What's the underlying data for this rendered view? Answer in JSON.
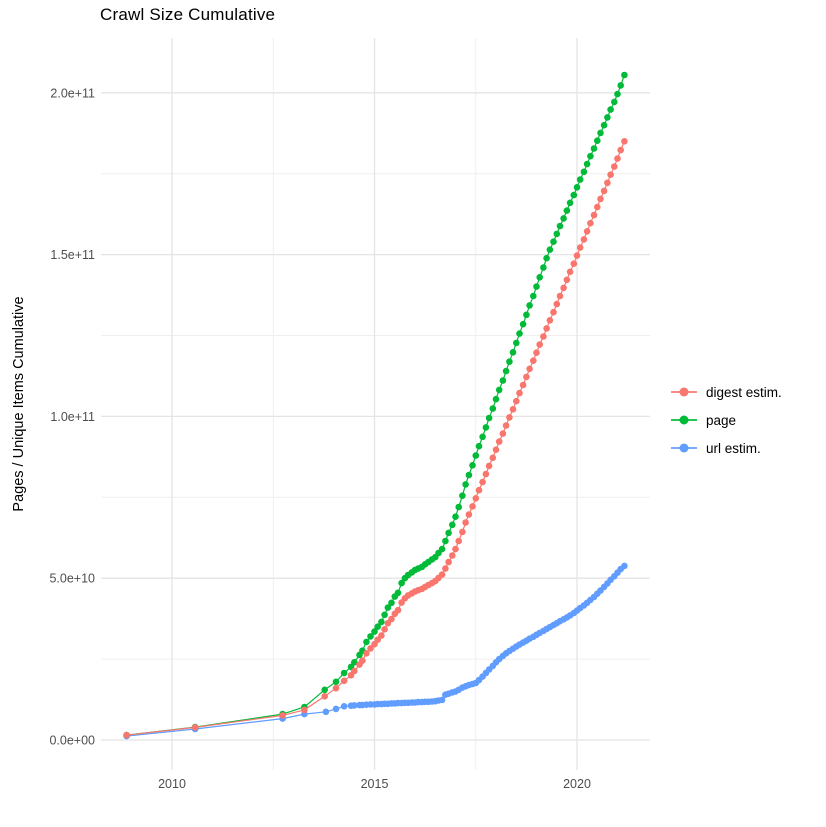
{
  "title": "Crawl Size Cumulative",
  "chart_data": {
    "type": "scatter",
    "subtype": "points-with-lines",
    "title": "Crawl Size Cumulative",
    "xlabel": "",
    "ylabel": "Pages / Unique Items Cumulative",
    "y_unit": "values listed in billions (multiply by 1e9)",
    "xlim": [
      2008.1,
      2021.8
    ],
    "ylim_e9": [
      -10,
      216
    ],
    "grid": "major+minor, light gray on white, no axis lines",
    "legend_position": "right-middle",
    "x_ticks": {
      "major": [
        2010,
        2015,
        2020
      ],
      "labels": [
        "2010",
        "2015",
        "2020"
      ],
      "minor": [
        2012.5,
        2017.5
      ]
    },
    "y_ticks": {
      "major_e9": [
        0,
        50,
        100,
        150,
        200
      ],
      "labels": [
        "0.0e+00",
        "5.0e+10",
        "1.0e+11",
        "1.5e+11",
        "2.0e+11"
      ],
      "minor_e9": [
        25,
        75,
        125,
        175
      ]
    },
    "colors": {
      "digest": "#F8766D",
      "page": "#00BA38",
      "url": "#619CFF"
    },
    "legend": {
      "items": [
        {
          "label": "digest estim.",
          "color": "#F8766D"
        },
        {
          "label": "page",
          "color": "#00BA38"
        },
        {
          "label": "url estim.",
          "color": "#619CFF"
        }
      ]
    },
    "series": [
      {
        "name": "digest estim.",
        "color": "#F8766D",
        "points_e9": [
          [
            2008.88,
            1.5
          ],
          [
            2010.57,
            3.9
          ],
          [
            2012.73,
            7.6
          ],
          [
            2013.27,
            9.3
          ],
          [
            2013.77,
            13.5
          ],
          [
            2014.05,
            16.0
          ],
          [
            2014.25,
            18.3
          ],
          [
            2014.42,
            20.0
          ],
          [
            2014.5,
            21.3
          ],
          [
            2014.63,
            23.3
          ],
          [
            2014.7,
            24.5
          ],
          [
            2014.8,
            26.8
          ],
          [
            2014.9,
            28.3
          ],
          [
            2015.0,
            29.6
          ],
          [
            2015.08,
            31.0
          ],
          [
            2015.17,
            32.3
          ],
          [
            2015.25,
            34.2
          ],
          [
            2015.33,
            36.1
          ],
          [
            2015.42,
            37.4
          ],
          [
            2015.5,
            39.0
          ],
          [
            2015.58,
            40.1
          ],
          [
            2015.67,
            42.5
          ],
          [
            2015.75,
            43.8
          ],
          [
            2015.83,
            44.7
          ],
          [
            2015.92,
            45.3
          ],
          [
            2016.0,
            45.9
          ],
          [
            2016.08,
            46.3
          ],
          [
            2016.17,
            46.7
          ],
          [
            2016.25,
            47.3
          ],
          [
            2016.33,
            47.9
          ],
          [
            2016.42,
            48.5
          ],
          [
            2016.5,
            49.1
          ],
          [
            2016.58,
            50.1
          ],
          [
            2016.67,
            51.1
          ],
          [
            2016.75,
            53.0
          ],
          [
            2016.83,
            55.0
          ],
          [
            2016.92,
            57.0
          ],
          [
            2017.0,
            59.0
          ],
          [
            2017.08,
            61.5
          ],
          [
            2017.17,
            64.3
          ],
          [
            2017.25,
            67.2
          ],
          [
            2017.33,
            69.7
          ],
          [
            2017.42,
            72.2
          ],
          [
            2017.5,
            74.7
          ],
          [
            2017.58,
            77.2
          ],
          [
            2017.67,
            79.7
          ],
          [
            2017.75,
            82.2
          ],
          [
            2017.83,
            84.7
          ],
          [
            2017.92,
            87.2
          ],
          [
            2018.0,
            89.7
          ],
          [
            2018.08,
            92.2
          ],
          [
            2018.17,
            94.7
          ],
          [
            2018.25,
            97.2
          ],
          [
            2018.33,
            99.7
          ],
          [
            2018.42,
            102.2
          ],
          [
            2018.5,
            104.7
          ],
          [
            2018.58,
            107.2
          ],
          [
            2018.67,
            109.7
          ],
          [
            2018.75,
            112.2
          ],
          [
            2018.83,
            114.7
          ],
          [
            2018.92,
            117.2
          ],
          [
            2019.0,
            119.7
          ],
          [
            2019.08,
            122.2
          ],
          [
            2019.17,
            124.7
          ],
          [
            2019.25,
            127.2
          ],
          [
            2019.33,
            129.7
          ],
          [
            2019.42,
            132.2
          ],
          [
            2019.5,
            134.7
          ],
          [
            2019.58,
            137.2
          ],
          [
            2019.67,
            139.7
          ],
          [
            2019.75,
            142.2
          ],
          [
            2019.83,
            144.7
          ],
          [
            2019.92,
            147.2
          ],
          [
            2020.0,
            149.7
          ],
          [
            2020.08,
            152.2
          ],
          [
            2020.17,
            154.7
          ],
          [
            2020.25,
            157.2
          ],
          [
            2020.33,
            159.7
          ],
          [
            2020.42,
            162.2
          ],
          [
            2020.5,
            164.7
          ],
          [
            2020.58,
            167.2
          ],
          [
            2020.67,
            169.7
          ],
          [
            2020.75,
            172.2
          ],
          [
            2020.83,
            174.7
          ],
          [
            2020.92,
            177.2
          ],
          [
            2021.0,
            179.7
          ],
          [
            2021.08,
            182.3
          ],
          [
            2021.17,
            185.0
          ]
        ]
      },
      {
        "name": "page",
        "color": "#00BA38",
        "points_e9": [
          [
            2008.88,
            1.5
          ],
          [
            2010.57,
            4.0
          ],
          [
            2012.73,
            8.0
          ],
          [
            2013.27,
            10.2
          ],
          [
            2013.77,
            15.5
          ],
          [
            2014.05,
            18.0
          ],
          [
            2014.25,
            20.7
          ],
          [
            2014.42,
            22.6
          ],
          [
            2014.5,
            24.0
          ],
          [
            2014.63,
            26.3
          ],
          [
            2014.7,
            27.6
          ],
          [
            2014.8,
            30.3
          ],
          [
            2014.9,
            32.0
          ],
          [
            2015.0,
            33.5
          ],
          [
            2015.08,
            35.0
          ],
          [
            2015.17,
            36.5
          ],
          [
            2015.25,
            38.7
          ],
          [
            2015.33,
            40.9
          ],
          [
            2015.42,
            42.4
          ],
          [
            2015.5,
            44.3
          ],
          [
            2015.58,
            45.5
          ],
          [
            2015.67,
            48.5
          ],
          [
            2015.75,
            50.0
          ],
          [
            2015.83,
            51.0
          ],
          [
            2015.92,
            51.8
          ],
          [
            2016.0,
            52.5
          ],
          [
            2016.08,
            53.0
          ],
          [
            2016.17,
            53.5
          ],
          [
            2016.25,
            54.3
          ],
          [
            2016.33,
            55.0
          ],
          [
            2016.42,
            55.8
          ],
          [
            2016.5,
            56.5
          ],
          [
            2016.58,
            57.8
          ],
          [
            2016.67,
            59.0
          ],
          [
            2016.75,
            61.5
          ],
          [
            2016.83,
            64.0
          ],
          [
            2016.92,
            66.5
          ],
          [
            2017.0,
            69.0
          ],
          [
            2017.08,
            72.0
          ],
          [
            2017.17,
            75.5
          ],
          [
            2017.25,
            79.0
          ],
          [
            2017.33,
            81.9
          ],
          [
            2017.42,
            84.9
          ],
          [
            2017.5,
            87.9
          ],
          [
            2017.58,
            90.8
          ],
          [
            2017.67,
            93.7
          ],
          [
            2017.75,
            96.6
          ],
          [
            2017.83,
            99.5
          ],
          [
            2017.92,
            102.4
          ],
          [
            2018.0,
            105.3
          ],
          [
            2018.08,
            108.2
          ],
          [
            2018.17,
            111.1
          ],
          [
            2018.25,
            114.0
          ],
          [
            2018.33,
            116.9
          ],
          [
            2018.42,
            119.8
          ],
          [
            2018.5,
            122.7
          ],
          [
            2018.58,
            125.6
          ],
          [
            2018.67,
            128.5
          ],
          [
            2018.75,
            131.4
          ],
          [
            2018.83,
            134.3
          ],
          [
            2018.92,
            137.2
          ],
          [
            2019.0,
            140.1
          ],
          [
            2019.08,
            143.0
          ],
          [
            2019.17,
            146.0
          ],
          [
            2019.25,
            148.9
          ],
          [
            2019.33,
            151.5
          ],
          [
            2019.42,
            154.0
          ],
          [
            2019.5,
            156.4
          ],
          [
            2019.58,
            158.8
          ],
          [
            2019.67,
            161.2
          ],
          [
            2019.75,
            163.6
          ],
          [
            2019.83,
            166.0
          ],
          [
            2019.92,
            168.4
          ],
          [
            2020.0,
            170.8
          ],
          [
            2020.08,
            173.2
          ],
          [
            2020.17,
            175.6
          ],
          [
            2020.25,
            178.0
          ],
          [
            2020.33,
            180.4
          ],
          [
            2020.42,
            182.8
          ],
          [
            2020.5,
            185.2
          ],
          [
            2020.58,
            187.6
          ],
          [
            2020.67,
            190.0
          ],
          [
            2020.75,
            192.4
          ],
          [
            2020.83,
            194.8
          ],
          [
            2020.92,
            197.2
          ],
          [
            2021.0,
            199.6
          ],
          [
            2021.08,
            202.3
          ],
          [
            2021.17,
            205.5
          ]
        ]
      },
      {
        "name": "url estim.",
        "color": "#619CFF",
        "points_e9": [
          [
            2008.88,
            1.2
          ],
          [
            2010.57,
            3.4
          ],
          [
            2012.73,
            6.6
          ],
          [
            2013.27,
            8.0
          ],
          [
            2013.8,
            8.7
          ],
          [
            2014.05,
            9.6
          ],
          [
            2014.25,
            10.4
          ],
          [
            2014.42,
            10.6
          ],
          [
            2014.5,
            10.7
          ],
          [
            2014.63,
            10.8
          ],
          [
            2014.7,
            10.8
          ],
          [
            2014.8,
            10.9
          ],
          [
            2014.9,
            11.0
          ],
          [
            2015.0,
            11.0
          ],
          [
            2015.08,
            11.1
          ],
          [
            2015.17,
            11.1
          ],
          [
            2015.25,
            11.2
          ],
          [
            2015.33,
            11.2
          ],
          [
            2015.42,
            11.3
          ],
          [
            2015.5,
            11.3
          ],
          [
            2015.58,
            11.4
          ],
          [
            2015.67,
            11.4
          ],
          [
            2015.75,
            11.5
          ],
          [
            2015.83,
            11.5
          ],
          [
            2015.92,
            11.6
          ],
          [
            2016.0,
            11.6
          ],
          [
            2016.08,
            11.7
          ],
          [
            2016.17,
            11.7
          ],
          [
            2016.25,
            11.8
          ],
          [
            2016.33,
            11.8
          ],
          [
            2016.42,
            11.9
          ],
          [
            2016.5,
            12.0
          ],
          [
            2016.58,
            12.2
          ],
          [
            2016.67,
            12.4
          ],
          [
            2016.75,
            14.0
          ],
          [
            2016.83,
            14.3
          ],
          [
            2016.92,
            14.7
          ],
          [
            2017.0,
            15.0
          ],
          [
            2017.08,
            15.5
          ],
          [
            2017.17,
            16.2
          ],
          [
            2017.25,
            16.6
          ],
          [
            2017.33,
            17.0
          ],
          [
            2017.42,
            17.3
          ],
          [
            2017.5,
            17.6
          ],
          [
            2017.58,
            18.5
          ],
          [
            2017.67,
            19.6
          ],
          [
            2017.75,
            20.7
          ],
          [
            2017.83,
            21.8
          ],
          [
            2017.92,
            22.9
          ],
          [
            2018.0,
            24.0
          ],
          [
            2018.08,
            25.0
          ],
          [
            2018.17,
            26.0
          ],
          [
            2018.25,
            26.8
          ],
          [
            2018.33,
            27.5
          ],
          [
            2018.42,
            28.2
          ],
          [
            2018.5,
            28.9
          ],
          [
            2018.58,
            29.5
          ],
          [
            2018.67,
            30.1
          ],
          [
            2018.75,
            30.7
          ],
          [
            2018.83,
            31.3
          ],
          [
            2018.92,
            31.9
          ],
          [
            2019.0,
            32.5
          ],
          [
            2019.08,
            33.1
          ],
          [
            2019.17,
            33.7
          ],
          [
            2019.25,
            34.3
          ],
          [
            2019.33,
            34.9
          ],
          [
            2019.42,
            35.5
          ],
          [
            2019.5,
            36.1
          ],
          [
            2019.58,
            36.7
          ],
          [
            2019.67,
            37.3
          ],
          [
            2019.75,
            37.9
          ],
          [
            2019.83,
            38.5
          ],
          [
            2019.92,
            39.2
          ],
          [
            2020.0,
            40.0
          ],
          [
            2020.08,
            40.8
          ],
          [
            2020.17,
            41.6
          ],
          [
            2020.25,
            42.4
          ],
          [
            2020.33,
            43.3
          ],
          [
            2020.42,
            44.2
          ],
          [
            2020.5,
            45.2
          ],
          [
            2020.58,
            46.2
          ],
          [
            2020.67,
            47.3
          ],
          [
            2020.75,
            48.4
          ],
          [
            2020.83,
            49.5
          ],
          [
            2020.92,
            50.6
          ],
          [
            2021.0,
            51.7
          ],
          [
            2021.08,
            52.8
          ],
          [
            2021.17,
            53.8
          ]
        ]
      }
    ]
  }
}
